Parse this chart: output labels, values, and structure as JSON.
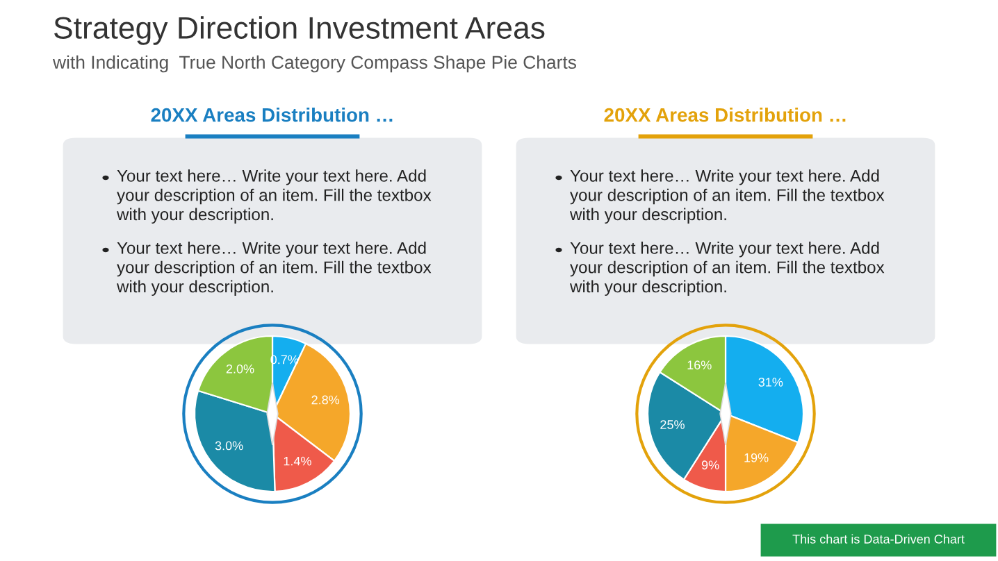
{
  "chart_data": [
    {
      "type": "other",
      "title": "Strategy Direction Investment Areas",
      "subtitle": "with Indicating  True North Category Compass Shape Pie Charts",
      "annotations": [
        "This chart is Data-Driven Chart"
      ]
    },
    {
      "type": "pie",
      "title": "20XX Areas Distribution …",
      "annotations": [
        "Your text here… Write your text here. Add\nyour description of an item. Fill the textbox\nwith your description.",
        "Your text here… Write your text here. Add\nyour description of an item. Fill the textbox\nwith your description."
      ],
      "categories": [
        null,
        null,
        null,
        null,
        null
      ],
      "values": [
        0.7,
        2.8,
        1.4,
        3.0,
        2.0
      ],
      "colors": [
        "#14aeef",
        "#f5a72a",
        "#ef5a4a",
        "#1b8aa6",
        "#8cc63e"
      ],
      "value_labels": [
        "0.7%",
        "2.8%",
        "1.4%",
        "3.0%",
        "2.0%"
      ]
    },
    {
      "type": "pie",
      "title": "20XX Areas Distribution …",
      "annotations": [
        "Your text here… Write your text here. Add\nyour description of an item. Fill the textbox\nwith your description.",
        "Your text here… Write your text here. Add\nyour description of an item. Fill the textbox\nwith your description."
      ],
      "categories": [
        null,
        null,
        null,
        null,
        null
      ],
      "values": [
        31,
        19,
        9,
        25,
        16
      ],
      "colors": [
        "#14aeef",
        "#f5a72a",
        "#ef5a4a",
        "#1b8aa6",
        "#8cc63e"
      ],
      "value_labels": [
        "31%",
        "19%",
        "9%",
        "25%",
        "16%"
      ]
    }
  ]
}
